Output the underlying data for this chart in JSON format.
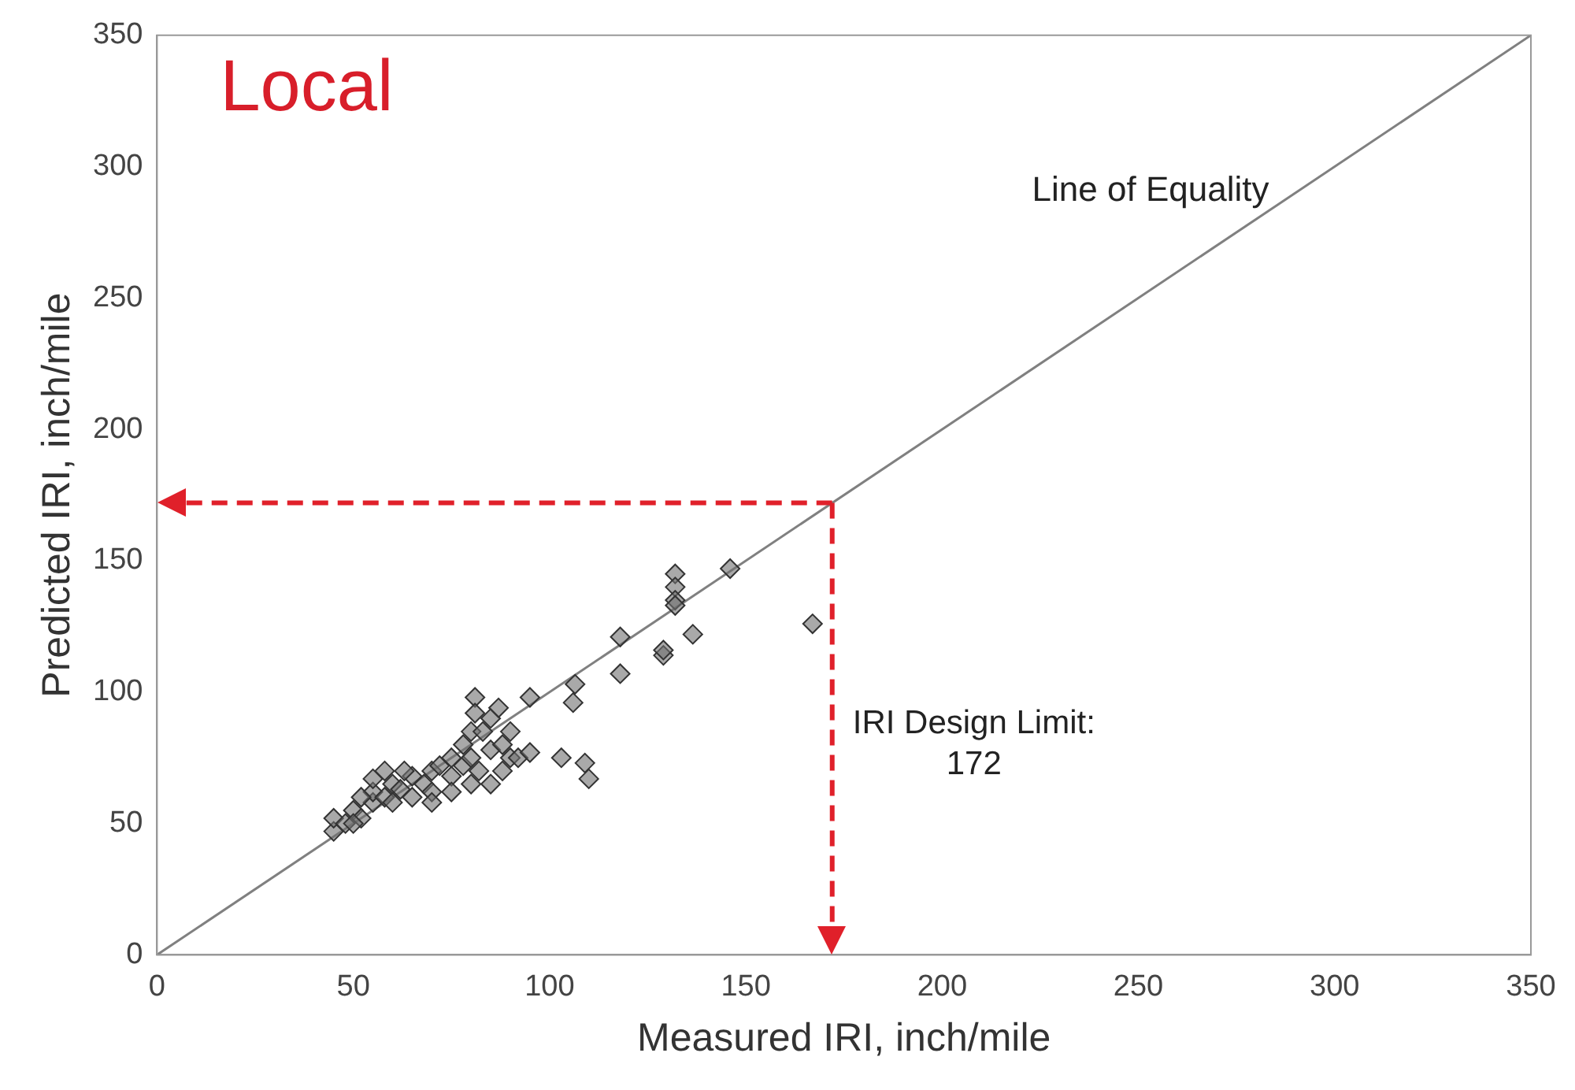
{
  "chart_data": {
    "type": "scatter",
    "title": "Local",
    "xlabel": "Measured IRI, inch/mile",
    "ylabel": "Predicted IRI, inch/mile",
    "xlim": [
      0,
      350
    ],
    "ylim": [
      0,
      350
    ],
    "xticks": [
      0,
      50,
      100,
      150,
      200,
      250,
      300,
      350
    ],
    "yticks": [
      0,
      50,
      100,
      150,
      200,
      250,
      300,
      350
    ],
    "grid": false,
    "legend": false,
    "series": [
      {
        "type": "scatter",
        "marker": "diamond",
        "color": "#707070",
        "x": [
          45,
          45,
          48,
          50,
          52,
          55,
          55,
          58,
          60,
          60,
          62,
          65,
          65,
          68,
          70,
          70,
          72,
          75,
          75,
          78,
          78,
          80,
          80,
          82,
          85,
          85,
          88,
          90,
          92,
          95,
          80,
          75,
          70,
          63,
          58,
          55,
          52,
          50,
          88,
          85,
          83,
          90,
          81,
          81,
          87,
          95,
          103,
          109,
          110,
          106,
          106.5,
          118,
          118,
          129,
          129,
          136.5,
          132,
          132,
          132,
          132,
          146,
          167
        ],
        "values": [
          47,
          52,
          50,
          55,
          52,
          58,
          62,
          60,
          65,
          58,
          63,
          68,
          60,
          65,
          70,
          62,
          72,
          68,
          75,
          72,
          80,
          85,
          75,
          70,
          78,
          65,
          80,
          75,
          75,
          77,
          65,
          62,
          58,
          70,
          70,
          67,
          60,
          50,
          70,
          90,
          85,
          85,
          98,
          92,
          94,
          98,
          75,
          73,
          67,
          96,
          103,
          121,
          107,
          114,
          116,
          122,
          145,
          140,
          135,
          133,
          147,
          126
        ]
      },
      {
        "type": "line",
        "marker": "none",
        "name": "Line of Equality",
        "color": "#808080",
        "x": [
          0,
          350
        ],
        "values": [
          0,
          350
        ]
      }
    ],
    "ref_lines": [
      {
        "axis": "x",
        "value": 172,
        "label": "IRI Design Limit:\n172",
        "color": "#e0202a",
        "line_style": "dashed"
      },
      {
        "axis": "y",
        "value": 172,
        "color": "#e0202a",
        "line_style": "dashed"
      }
    ]
  }
}
